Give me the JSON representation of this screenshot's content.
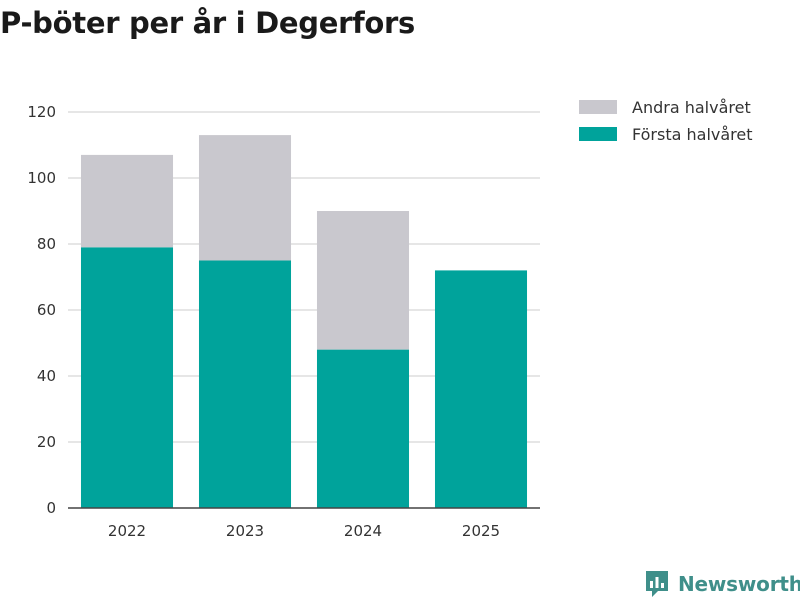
{
  "chart_data": {
    "type": "bar",
    "stacked": true,
    "title": "P-böter per år i Degerfors",
    "xlabel": "",
    "ylabel": "",
    "ylim": [
      0,
      120
    ],
    "yticks": [
      0,
      20,
      40,
      60,
      80,
      100,
      120
    ],
    "categories": [
      "2022",
      "2023",
      "2024",
      "2025"
    ],
    "series": [
      {
        "name": "Första halvåret",
        "color": "#00a39b",
        "values": [
          79,
          75,
          48,
          72
        ]
      },
      {
        "name": "Andra halvåret",
        "color": "#c9c8ce",
        "values": [
          28,
          38,
          42,
          0
        ]
      }
    ],
    "legend": {
      "position": "top-right",
      "order": [
        "Andra halvåret",
        "Första halvåret"
      ]
    },
    "grid": true
  },
  "branding": {
    "name": "Newsworthy",
    "icon": "newsworthy-logo-icon",
    "color": "#3f8f8a"
  }
}
